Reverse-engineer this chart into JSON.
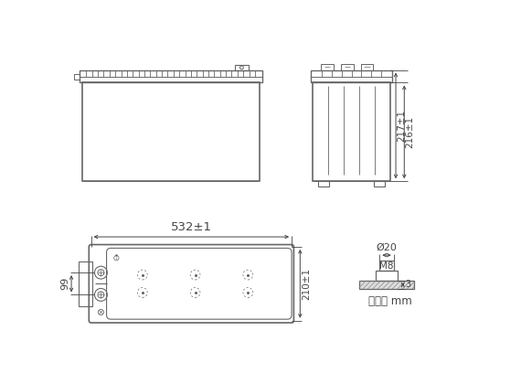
{
  "bg_color": "#ffffff",
  "line_color": "#666666",
  "dim_color": "#444444",
  "font_size": 8,
  "dim_532": "532±1",
  "dim_217": "217±1",
  "dim_216": "216±1",
  "dim_210": "210±1",
  "dim_99": "99",
  "dim_phi20": "Ø20",
  "dim_M8": "M8",
  "dim_3": "3",
  "unit_label": "单位： mm"
}
